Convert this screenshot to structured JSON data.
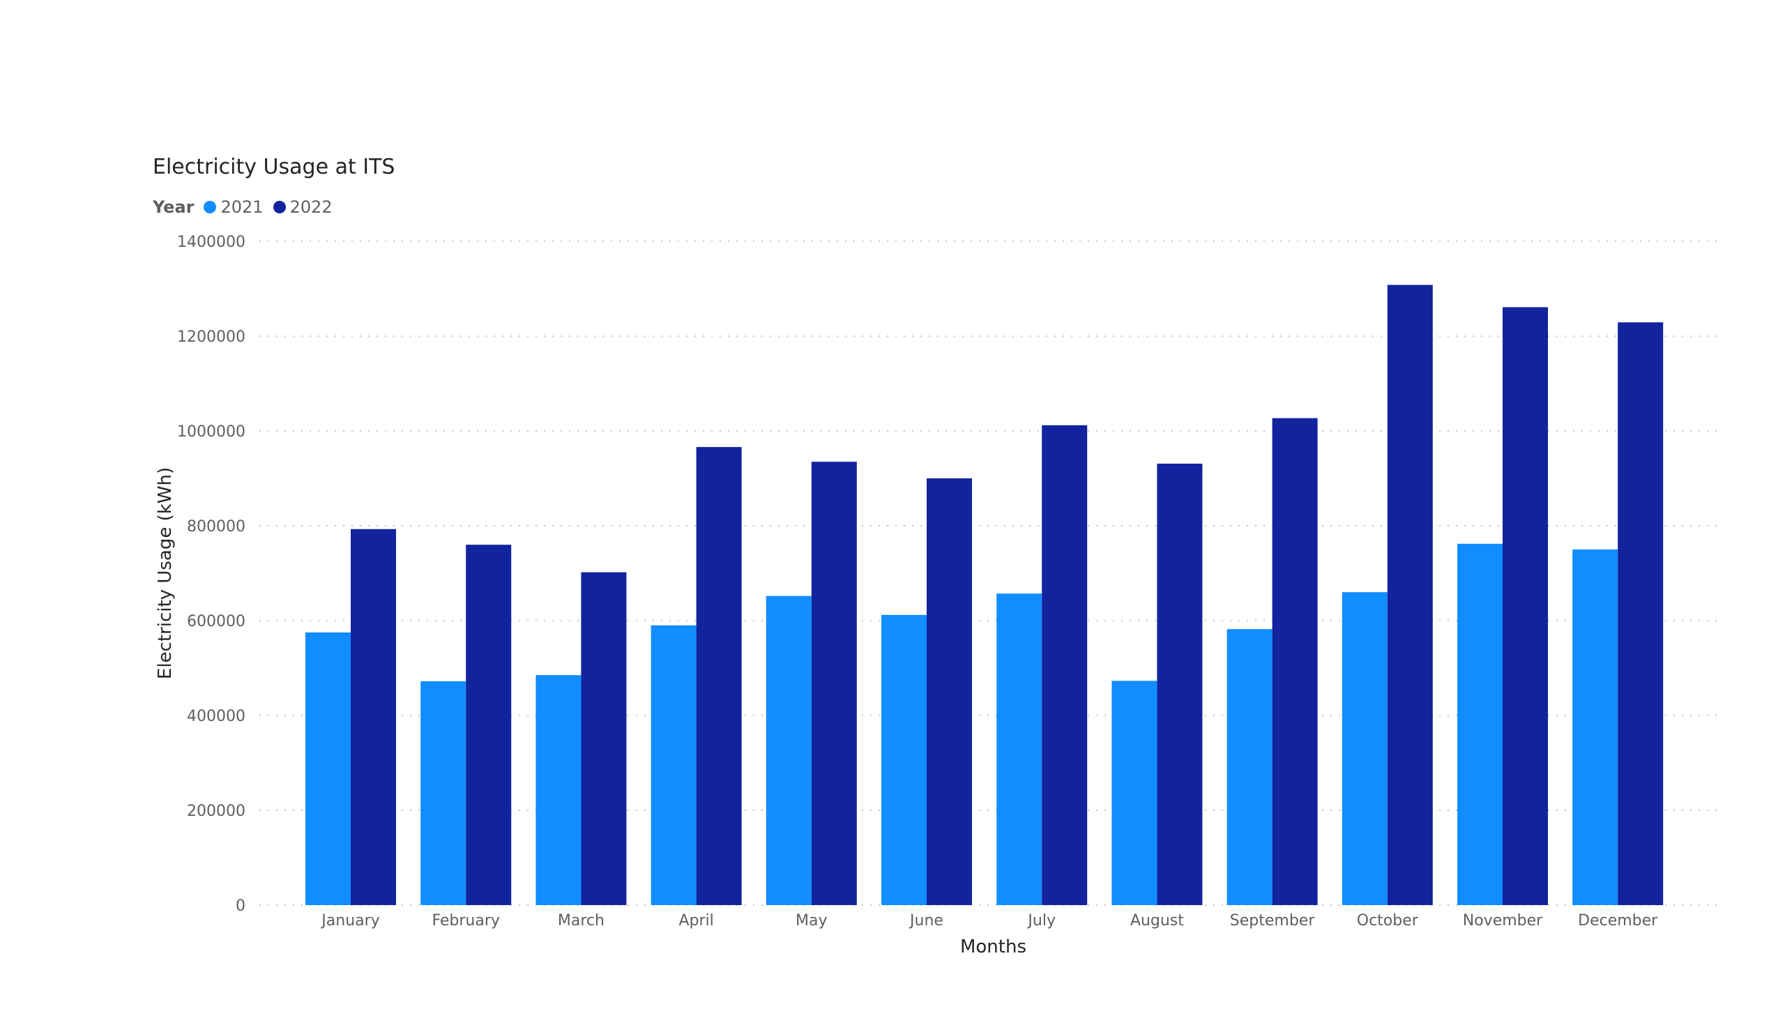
{
  "chart_data": {
    "type": "bar",
    "title": "Electricity Usage at ITS",
    "legend_title": "Year",
    "legend_position": "top-left",
    "xlabel": "Months",
    "ylabel": "Electricity Usage (kWh)",
    "ylim": [
      0,
      1400000
    ],
    "yticks": [
      "0",
      "200000",
      "400000",
      "600000",
      "800000",
      "1000000",
      "1200000",
      "1400000"
    ],
    "grid": true,
    "categories": [
      "January",
      "February",
      "March",
      "April",
      "May",
      "June",
      "July",
      "August",
      "September",
      "October",
      "November",
      "December"
    ],
    "series": [
      {
        "name": "2021",
        "color": "#118dff",
        "values": [
          575000,
          472000,
          485000,
          590000,
          652000,
          612000,
          657000,
          473000,
          582000,
          660000,
          762000,
          750000
        ]
      },
      {
        "name": "2022",
        "color": "#12239e",
        "values": [
          793000,
          760000,
          702000,
          966000,
          935000,
          900000,
          1012000,
          931000,
          1027000,
          1308000,
          1261000,
          1229000
        ]
      }
    ]
  }
}
